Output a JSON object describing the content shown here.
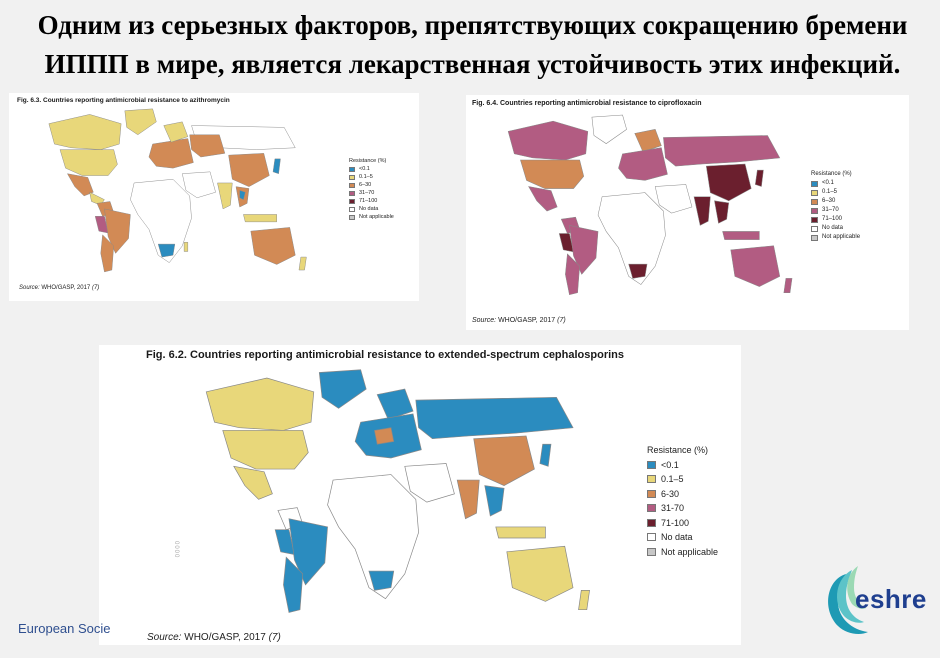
{
  "headline": {
    "line1": "Одним из серьезных факторов, препятствующих сокращению бремени",
    "line2": "ИППП в мире, является лекарственная устойчивость этих инфекций."
  },
  "colors": {
    "lt_0_1": "#2b8cbf",
    "r_0_1_5": "#e8d77a",
    "r_6_30": "#d28a55",
    "r_31_70": "#b25c82",
    "r_71_100": "#6b1f2e",
    "no_data": "#ffffff",
    "not_applicable": "#c7c7c7"
  },
  "legend_title": "Resistance (%)",
  "legend_items": [
    "<0.1",
    "0.1–5",
    "6-30",
    "31-70",
    "71-100",
    "No data",
    "Not applicable"
  ],
  "fig63": {
    "title": "Fig. 6.3. Countries reporting antimicrobial resistance to azithromycin",
    "source_label": "Source:",
    "source_text": "WHO/GASP, 2017",
    "source_ref": "(7)",
    "legend_items": [
      "<0.1",
      "0.1–5",
      "6–30",
      "31–70",
      "71–100",
      "No data",
      "Not applicable"
    ]
  },
  "fig64": {
    "title": "Fig. 6.4. Countries reporting antimicrobial resistance to ciprofloxacin",
    "source_label": "Source:",
    "source_text": "WHO/GASP, 2017",
    "source_ref": "(7)",
    "legend_items": [
      "<0.1",
      "0.1–5",
      "6–30",
      "31–70",
      "71–100",
      "No data",
      "Not applicable"
    ]
  },
  "fig62": {
    "title": "Fig. 6.2. Countries reporting antimicrobial resistance to extended-spectrum cephalosporins",
    "source_label": "Source:",
    "source_text": "WHO/GASP, 2017",
    "source_ref": "(7)",
    "legend_items": [
      "<0.1",
      "0.1–5",
      "6-30",
      "31-70",
      "71-100",
      "No data",
      "Not applicable"
    ]
  },
  "footer": {
    "text": "European Socie"
  },
  "logo": {
    "text": "eshre"
  }
}
